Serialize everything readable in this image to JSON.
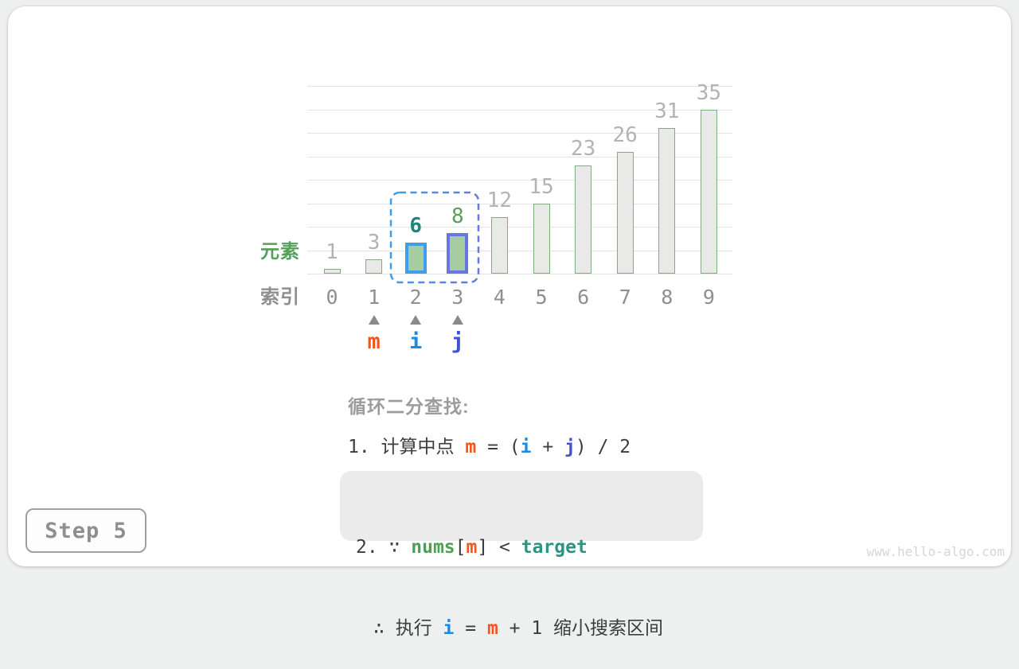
{
  "page": {
    "step_label": "Step 5",
    "watermark": "www.hello-algo.com"
  },
  "colors": {
    "dark": "#3d3d3d",
    "m": "#f0561d",
    "i": "#1e88e5",
    "j": "#3f51d5",
    "nums": "#4da053",
    "target": "#2b9485",
    "grid": "#e3e3e3",
    "bar_fill": "#e9e9e7",
    "bar_border": "#82ab82",
    "value_label": "#b2b4b2",
    "element_label": "#55a05a",
    "index_label": "#8f8f8f"
  },
  "chart": {
    "element_axis_label": "元素",
    "index_axis_label": "索引"
  },
  "chart_data": {
    "type": "bar",
    "categories": [
      "0",
      "1",
      "2",
      "3",
      "4",
      "5",
      "6",
      "7",
      "8",
      "9"
    ],
    "values": [
      1,
      3,
      6,
      8,
      12,
      15,
      23,
      26,
      31,
      35
    ],
    "title": "",
    "xlabel": "索引",
    "ylabel": "元素",
    "ylim": [
      0,
      40
    ],
    "grid_step": 5,
    "grid": "on",
    "highlights": [
      {
        "index": 2,
        "value": 6,
        "fill": "#a5cda0",
        "border": "#3d9fe8",
        "label_color": "#1f857a",
        "label_bold": true
      },
      {
        "index": 3,
        "value": 8,
        "fill": "#a5cda0",
        "border": "#6877db",
        "label_color": "#56a156",
        "label_bold": false
      }
    ],
    "selection_range": {
      "from_index": 2,
      "to_index": 3,
      "stroke_from": "#3d9fe8",
      "stroke_to": "#6877db"
    }
  },
  "pointers": [
    {
      "name": "m",
      "index": 1,
      "color_key": "m"
    },
    {
      "name": "i",
      "index": 2,
      "color_key": "i"
    },
    {
      "name": "j",
      "index": 3,
      "color_key": "j"
    }
  ],
  "caption": {
    "title": "循环二分查找:",
    "step1_segments": [
      {
        "t": "1. 计算中点 ",
        "c": "dark"
      },
      {
        "t": "m",
        "c": "m"
      },
      {
        "t": " = (",
        "c": "dark"
      },
      {
        "t": "i",
        "c": "i"
      },
      {
        "t": " + ",
        "c": "dark"
      },
      {
        "t": "j",
        "c": "j"
      },
      {
        "t": ") / 2",
        "c": "dark"
      }
    ],
    "step2_line1_segments": [
      {
        "t": "2. ∵ ",
        "c": "dark"
      },
      {
        "t": "nums",
        "c": "nums"
      },
      {
        "t": "[",
        "c": "dark"
      },
      {
        "t": "m",
        "c": "m"
      },
      {
        "t": "] < ",
        "c": "dark"
      },
      {
        "t": "target",
        "c": "target"
      }
    ],
    "step2_line2_segments": [
      {
        "t": "∴ 执行 ",
        "c": "dark"
      },
      {
        "t": "i",
        "c": "i"
      },
      {
        "t": " = ",
        "c": "dark"
      },
      {
        "t": "m",
        "c": "m"
      },
      {
        "t": " + 1 缩小搜索区间",
        "c": "dark"
      }
    ]
  }
}
